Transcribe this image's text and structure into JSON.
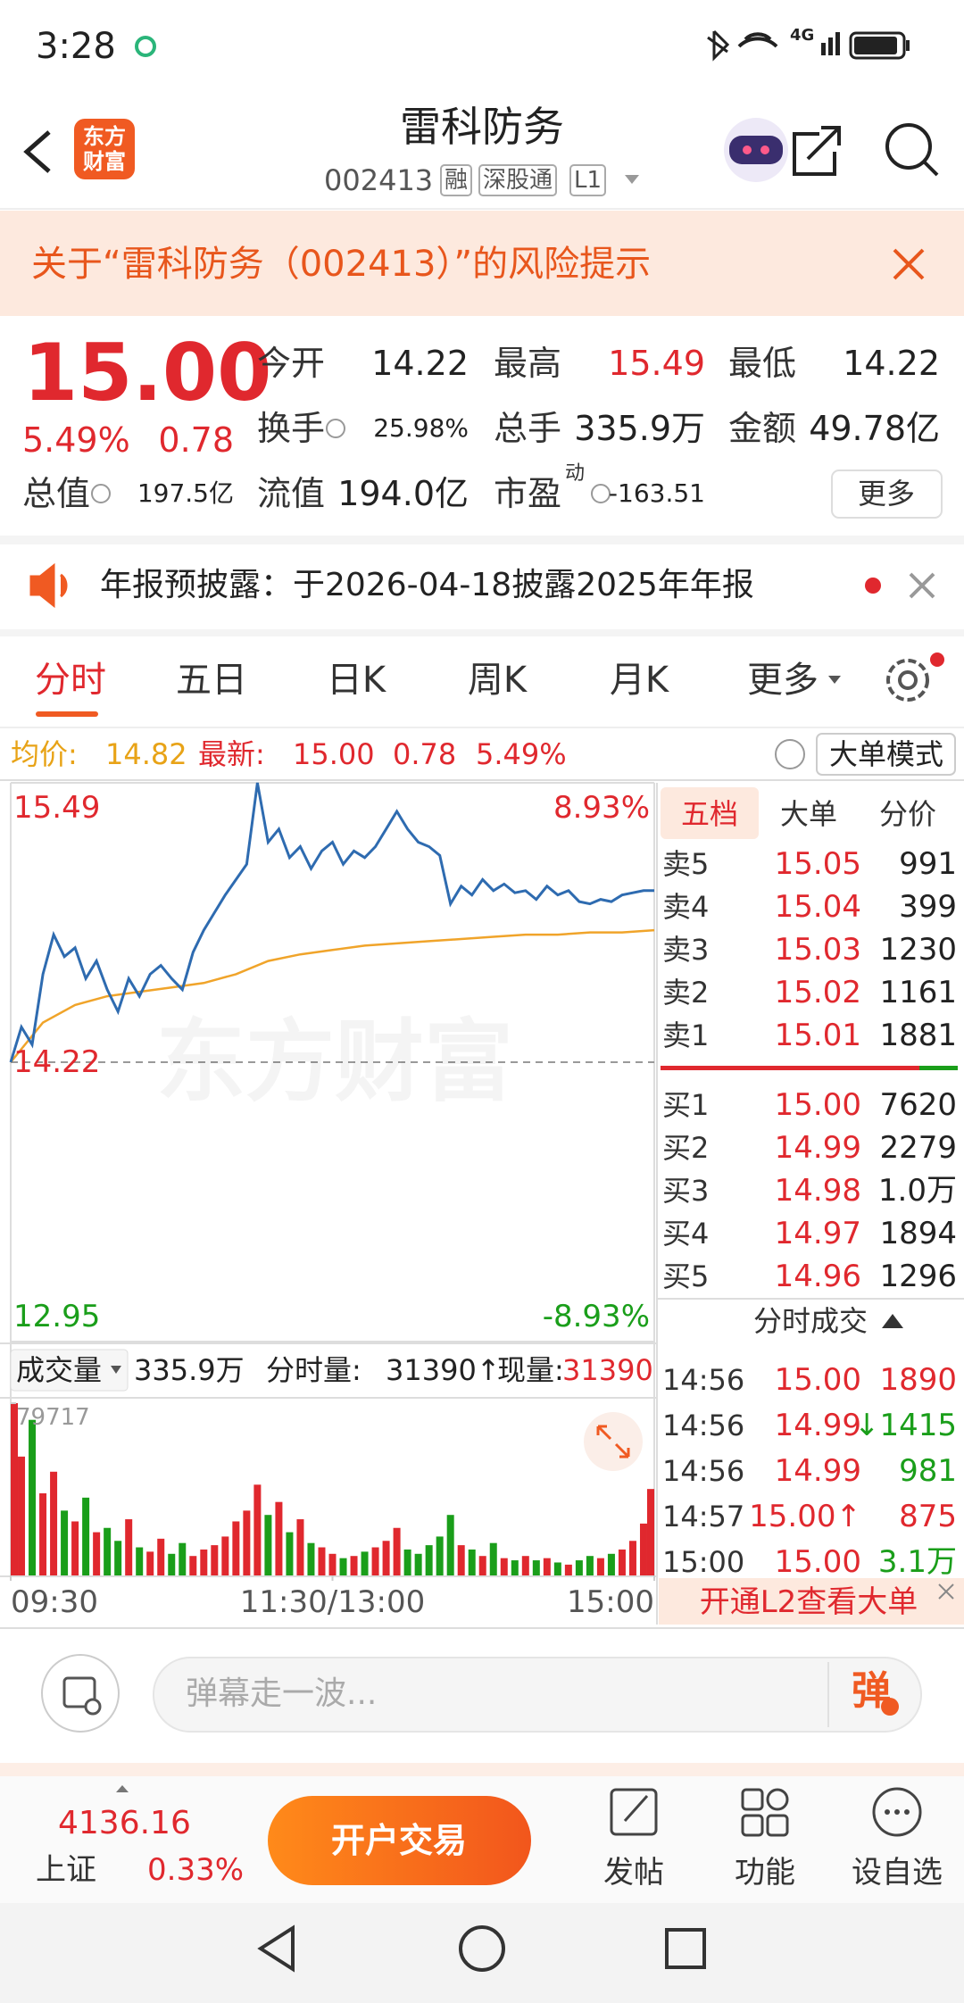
{
  "status_bar": {
    "time": "3:28",
    "network": "4G"
  },
  "header": {
    "title": "雷科防务",
    "code": "002413",
    "tags": [
      "融",
      "深股通",
      "L1"
    ],
    "logo": [
      "东方",
      "财富"
    ]
  },
  "risk_banner": {
    "text": "关于“雷科防务（002413）”的风险提示"
  },
  "quote": {
    "price": "15.00",
    "change_pct": "5.49%",
    "change": "0.78",
    "fields": [
      {
        "label": "今开",
        "value": "14.22"
      },
      {
        "label": "最高",
        "value": "15.49"
      },
      {
        "label": "最低",
        "value": "14.22"
      },
      {
        "label": "换手",
        "value": "25.98%"
      },
      {
        "label": "总手",
        "value": "335.9万"
      },
      {
        "label": "金额",
        "value": "49.78亿"
      },
      {
        "label": "总值",
        "value": "197.5亿"
      },
      {
        "label": "流值",
        "value": "194.0亿"
      },
      {
        "label": "市盈",
        "value": "-163.51",
        "sup": "动"
      }
    ],
    "more": "更多"
  },
  "notice": {
    "text": "年报预披露：于2026-04-18披露2025年年报"
  },
  "tabs": [
    "分时",
    "五日",
    "日K",
    "周K",
    "月K",
    "更多"
  ],
  "info_bar": {
    "avg_label": "均价:",
    "avg": "14.82",
    "last_label": "最新:",
    "last": "15.00",
    "change": "0.78",
    "change_pct": "5.49%",
    "mode": "大单模式"
  },
  "watermark": "东方财富",
  "chart_data": [
    {
      "type": "line",
      "xlim": [
        0,
        240
      ],
      "ylim": [
        12.95,
        15.49
      ],
      "yticks": [
        15.49,
        14.22,
        12.95
      ],
      "y2lim": [
        -8.93,
        8.93
      ],
      "y2ticks": [
        {
          "value": 8.93,
          "label": "8.93%"
        },
        {
          "value": -8.93,
          "label": "-8.93%"
        }
      ],
      "series": [
        {
          "color": "#f0a42a",
          "x": [
            0,
            12,
            24,
            36,
            48,
            60,
            72,
            84,
            96,
            108,
            120,
            132,
            144,
            156,
            168,
            180,
            192,
            204,
            216,
            228,
            240
          ],
          "values": [
            14.22,
            14.4,
            14.48,
            14.52,
            14.54,
            14.56,
            14.58,
            14.62,
            14.68,
            14.71,
            14.73,
            14.75,
            14.76,
            14.77,
            14.78,
            14.79,
            14.8,
            14.8,
            14.81,
            14.81,
            14.82
          ]
        },
        {
          "color": "#2e6bb0",
          "x": [
            0,
            4,
            8,
            12,
            16,
            20,
            24,
            28,
            32,
            36,
            40,
            44,
            48,
            52,
            56,
            60,
            64,
            68,
            72,
            76,
            80,
            84,
            88,
            92,
            96,
            100,
            104,
            108,
            112,
            116,
            120,
            124,
            128,
            132,
            136,
            140,
            144,
            148,
            152,
            156,
            160,
            164,
            168,
            172,
            176,
            180,
            184,
            188,
            192,
            196,
            200,
            204,
            208,
            212,
            216,
            220,
            224,
            228,
            232,
            236,
            240
          ],
          "values": [
            14.22,
            14.38,
            14.3,
            14.62,
            14.8,
            14.7,
            14.74,
            14.6,
            14.68,
            14.55,
            14.45,
            14.6,
            14.52,
            14.62,
            14.66,
            14.6,
            14.55,
            14.72,
            14.82,
            14.9,
            14.98,
            15.05,
            15.12,
            15.49,
            15.22,
            15.28,
            15.15,
            15.2,
            15.1,
            15.18,
            15.22,
            15.12,
            15.18,
            15.15,
            15.2,
            15.28,
            15.36,
            15.28,
            15.22,
            15.2,
            15.16,
            14.94,
            15.02,
            14.98,
            15.05,
            15.0,
            15.03,
            14.99,
            15.0,
            14.96,
            15.02,
            14.98,
            15.0,
            14.95,
            14.94,
            14.96,
            14.95,
            14.98,
            14.99,
            15.0,
            15.0
          ]
        }
      ]
    },
    {
      "type": "bar",
      "xlim": [
        0,
        240
      ],
      "ylim": [
        0,
        79717
      ],
      "yticks": [
        79717
      ],
      "xticks": [
        {
          "value": 0,
          "label": "09:30"
        },
        {
          "value": 120,
          "label": "11:30/13:00"
        },
        {
          "value": 240,
          "label": "15:00"
        }
      ],
      "colors": [
        "#e0282e",
        "#1a9e1a"
      ],
      "x": [
        0,
        4,
        8,
        12,
        16,
        20,
        24,
        28,
        32,
        36,
        40,
        44,
        48,
        52,
        56,
        60,
        64,
        68,
        72,
        76,
        80,
        84,
        88,
        92,
        96,
        100,
        104,
        108,
        112,
        116,
        120,
        124,
        128,
        132,
        136,
        140,
        144,
        148,
        152,
        156,
        160,
        164,
        168,
        172,
        176,
        180,
        184,
        188,
        192,
        196,
        200,
        204,
        208,
        212,
        216,
        220,
        224,
        228,
        232,
        236,
        240
      ],
      "values": [
        79717,
        55000,
        72000,
        38000,
        48000,
        30000,
        25000,
        36000,
        20000,
        22000,
        16000,
        26000,
        13000,
        11000,
        17000,
        10000,
        15000,
        9000,
        12000,
        14000,
        18000,
        25000,
        30000,
        42000,
        28000,
        34000,
        20000,
        26000,
        15000,
        13000,
        10000,
        8000,
        9000,
        11000,
        13000,
        16000,
        22000,
        12000,
        10000,
        14000,
        18000,
        28000,
        14000,
        12000,
        9000,
        15000,
        8000,
        7000,
        9000,
        7000,
        8000,
        6000,
        5000,
        7000,
        9000,
        8000,
        10000,
        12000,
        16000,
        24000,
        40000
      ]
    }
  ],
  "volume_bar": {
    "label": "成交量",
    "total": "335.9万",
    "minute_label": "分时量:",
    "minute": "31390↑",
    "now_label": "现量:",
    "now": "31390"
  },
  "order_book": {
    "tabs": [
      "五档",
      "大单",
      "分价"
    ],
    "asks": [
      [
        "卖5",
        "15.05",
        "991"
      ],
      [
        "卖4",
        "15.04",
        "399"
      ],
      [
        "卖3",
        "15.03",
        "1230"
      ],
      [
        "卖2",
        "15.02",
        "1161"
      ],
      [
        "卖1",
        "15.01",
        "1881"
      ]
    ],
    "bids": [
      [
        "买1",
        "15.00",
        "7620"
      ],
      [
        "买2",
        "14.99",
        "2279"
      ],
      [
        "买3",
        "14.98",
        "1.0万"
      ],
      [
        "买4",
        "14.97",
        "1894"
      ],
      [
        "买5",
        "14.96",
        "1296"
      ]
    ]
  },
  "trades": {
    "title": "分时成交",
    "rows": [
      [
        "14:56",
        "15.00",
        "1890"
      ],
      [
        "14:56",
        "14.99",
        "↓1415"
      ],
      [
        "14:56",
        "14.99",
        "981"
      ],
      [
        "14:57",
        "15.00↑",
        "875"
      ],
      [
        "15:00",
        "15.00",
        "3.1万"
      ]
    ]
  },
  "l2_banner": "开通L2查看大单",
  "comment": {
    "placeholder": "弹幕走一波...",
    "button": "弹"
  },
  "bottom_bar": {
    "index_value": "4136.16",
    "index_name": "上证",
    "index_change": "0.33%",
    "trade_button": "开户交易",
    "actions": [
      "发帖",
      "功能",
      "设自选"
    ]
  }
}
